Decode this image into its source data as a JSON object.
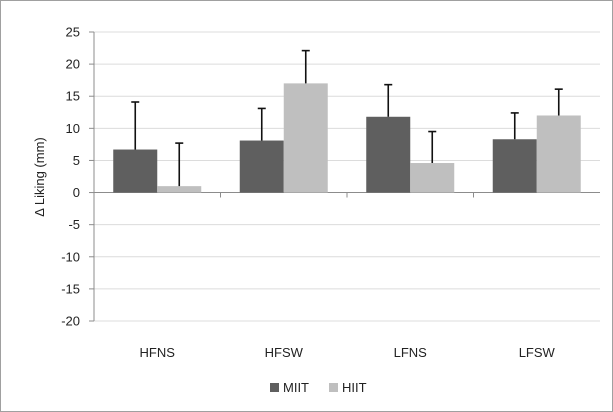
{
  "chart_data": {
    "type": "bar",
    "title": "",
    "xlabel": "",
    "ylabel": "Δ Liking (mm)",
    "ylim": [
      -20,
      25
    ],
    "yticks": [
      25,
      20,
      15,
      10,
      5,
      0,
      -5,
      -10,
      -15,
      -20
    ],
    "categories": [
      "HFNS",
      "HFSW",
      "LFNS",
      "LFSW"
    ],
    "series": [
      {
        "name": "MIIT",
        "color": "#5f5f5f",
        "values": [
          6.7,
          8.1,
          11.8,
          8.3
        ],
        "errors": [
          7.4,
          5.0,
          5.0,
          4.1
        ]
      },
      {
        "name": "HIIT",
        "color": "#bfbfbf",
        "values": [
          1.0,
          17.0,
          4.6,
          12.0
        ],
        "errors": [
          6.7,
          5.1,
          4.9,
          4.1
        ]
      }
    ],
    "grid": true,
    "legend_position": "bottom"
  }
}
